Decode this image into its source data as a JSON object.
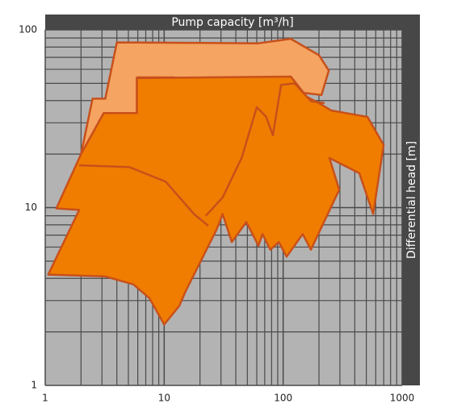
{
  "chart_data": {
    "type": "area",
    "title": "Pump capacity  [m³/h]",
    "y_label": "Differential head  [m]",
    "log_x": true,
    "log_y": true,
    "grid": true,
    "xlim": [
      1,
      1000
    ],
    "ylim": [
      1,
      100
    ],
    "xticks": [
      1,
      10,
      100,
      1000
    ],
    "yticks": [
      1,
      10,
      100
    ],
    "xminor": [
      2,
      3,
      4,
      5,
      6,
      7,
      8,
      9,
      20,
      30,
      40,
      50,
      60,
      70,
      80,
      90,
      200,
      300,
      400,
      500,
      600,
      700,
      800,
      900
    ],
    "yminor": [
      2,
      3,
      4,
      5,
      6,
      7,
      8,
      9,
      20,
      30,
      40,
      50,
      60,
      70,
      80,
      90
    ],
    "series": [
      {
        "kind": "area",
        "color": "#f5a462",
        "x": [
          2,
          2.5,
          3.2,
          4,
          62,
          116,
          200,
          242,
          210,
          12,
          5.9,
          5.9,
          3.1
        ],
        "y": [
          20,
          41,
          41,
          85,
          84,
          89,
          72,
          59,
          43,
          54,
          54,
          34,
          34
        ]
      },
      {
        "kind": "area",
        "color": "#f07d00",
        "x": [
          1.06,
          1.93,
          1.24,
          2,
          3.1,
          5.9,
          5.9,
          116,
          158,
          200,
          253,
          511,
          699,
          571,
          437,
          245,
          296,
          171,
          146,
          107,
          92,
          78,
          67,
          62,
          49,
          37,
          31,
          27.5,
          15.2,
          13.4,
          10,
          7.5,
          5.5,
          3.2
        ],
        "y": [
          4.2,
          9.7,
          9.9,
          20,
          34,
          34,
          53.5,
          54.6,
          42,
          38.7,
          35.2,
          32.4,
          22.5,
          9.2,
          15.6,
          19,
          12.6,
          5.8,
          7.1,
          5.3,
          6.4,
          5.8,
          7.1,
          6.1,
          8.3,
          6.4,
          9.2,
          7.5,
          3.4,
          2.8,
          2.2,
          3.1,
          3.7,
          4.1
        ]
      },
      {
        "kind": "line",
        "color": "#c8501a",
        "x": [
          1.93,
          5.1,
          10.3,
          17.8,
          23.5
        ],
        "y": [
          17.3,
          16.9,
          14,
          9.2,
          7.9
        ]
      },
      {
        "kind": "line",
        "color": "#c8501a",
        "x": [
          22.4,
          31,
          45,
          60,
          72,
          82,
          96,
          125,
          171,
          223
        ],
        "y": [
          9,
          11.4,
          19.2,
          36.7,
          32.4,
          25.5,
          49,
          50,
          39.7,
          38.7
        ]
      }
    ],
    "stroke": "#c8501a",
    "background": "#b3b3b3",
    "grid_color": "#4a4a4a",
    "frame_color": "#474747"
  }
}
